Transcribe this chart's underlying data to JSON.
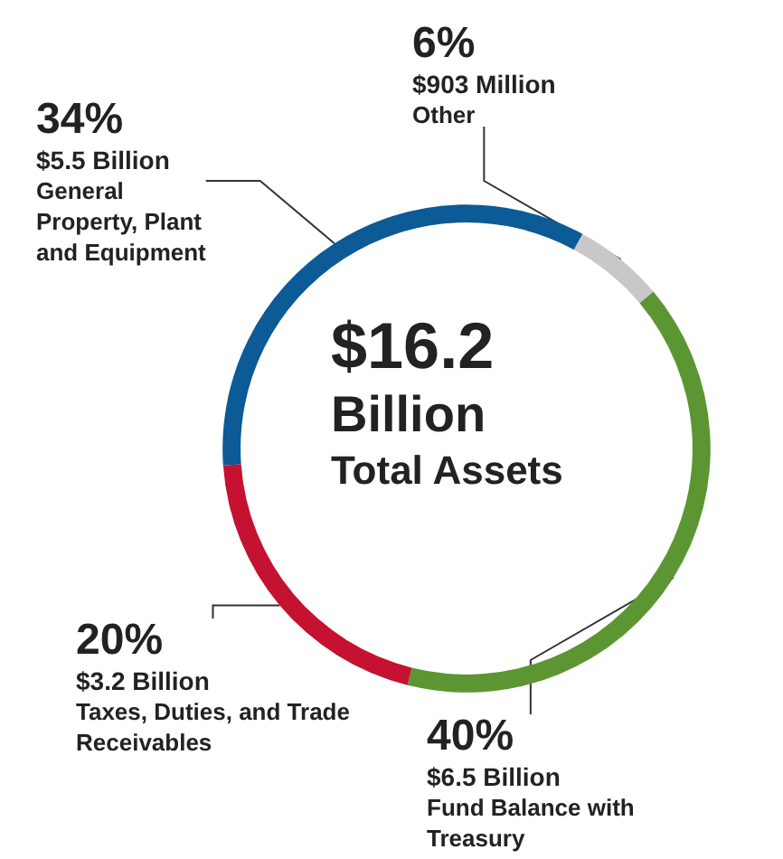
{
  "chart_data": {
    "type": "donut",
    "title": "$16.2\nBillion",
    "subtitle": "Total Assets",
    "categories": [
      "$5.5 Billion\nGeneral\nProperty, Plant\nand Equipment",
      "$903 Million\nOther",
      "$6.5 Billion\nFund Balance with\nTreasury",
      "$3.2 Billion\nTaxes, Duties, and Trade\nReceivables"
    ],
    "values": [
      34,
      6,
      40,
      20
    ],
    "value_labels": [
      "34%",
      "6%",
      "40%",
      "20%"
    ],
    "colors": [
      "#0c5a96",
      "#c8c8c8",
      "#5b9632",
      "#c41230"
    ],
    "legend": false
  }
}
